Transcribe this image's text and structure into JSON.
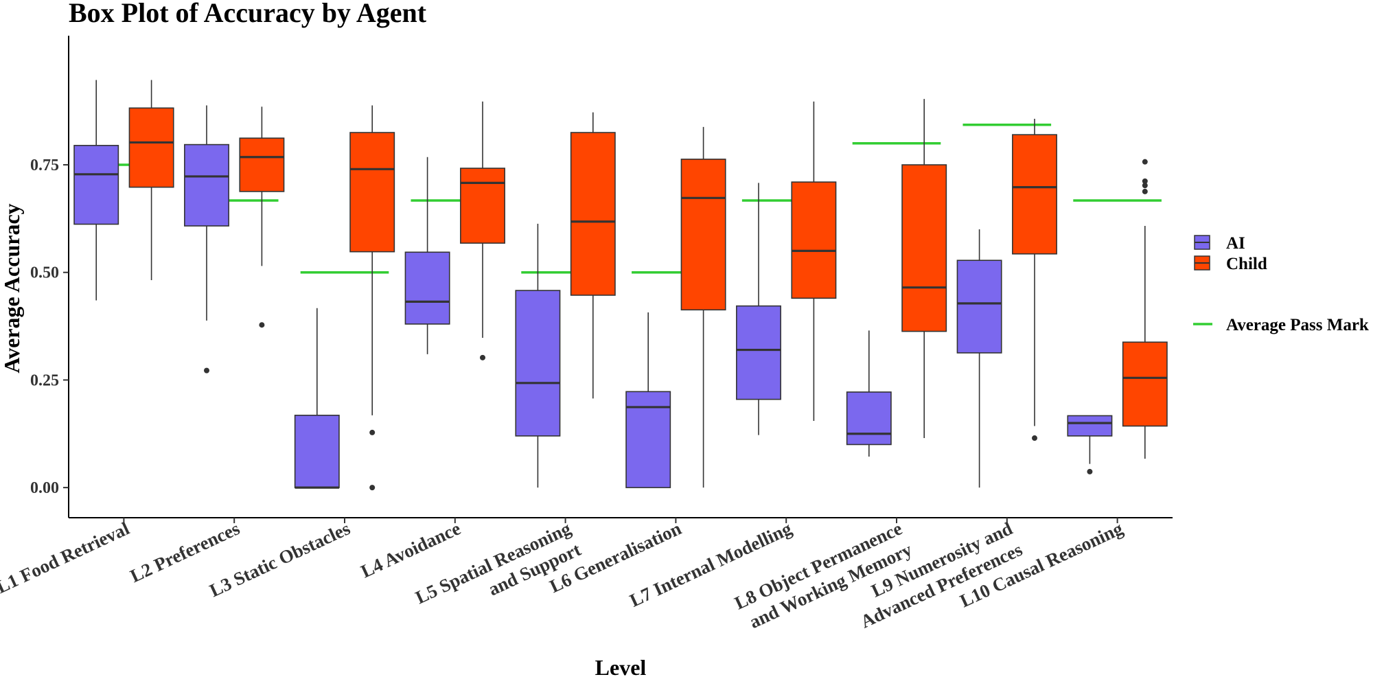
{
  "chart_data": {
    "type": "boxplot",
    "title": "Box Plot of Accuracy by Agent",
    "xlabel": "Level",
    "ylabel": "Average Accuracy",
    "ylim": [
      -0.07,
      1.05
    ],
    "yticks": [
      0.0,
      0.25,
      0.5,
      0.75
    ],
    "ytick_labels": [
      "0.00",
      "0.25",
      "0.50",
      "0.75"
    ],
    "legend": {
      "position": "right",
      "items": [
        {
          "name": "AI",
          "color": "#7B68EE"
        },
        {
          "name": "Child",
          "color": "#FF4500"
        }
      ],
      "pass_mark_label": "Average Pass Mark",
      "pass_mark_color": "#32CD32"
    },
    "categories": [
      {
        "lines": [
          "L1 Food Retrieval"
        ],
        "pass_mark": 0.75,
        "AI": {
          "whisker_low": 0.435,
          "q1": 0.612,
          "median": 0.728,
          "q3": 0.795,
          "whisker_high": 0.947,
          "outliers": []
        },
        "Child": {
          "whisker_low": 0.482,
          "q1": 0.698,
          "median": 0.802,
          "q3": 0.882,
          "whisker_high": 0.947,
          "outliers": []
        }
      },
      {
        "lines": [
          "L2 Preferences"
        ],
        "pass_mark": 0.667,
        "AI": {
          "whisker_low": 0.388,
          "q1": 0.608,
          "median": 0.723,
          "q3": 0.797,
          "whisker_high": 0.888,
          "outliers": [
            0.272
          ]
        },
        "Child": {
          "whisker_low": 0.515,
          "q1": 0.688,
          "median": 0.768,
          "q3": 0.812,
          "whisker_high": 0.885,
          "outliers": [
            0.378
          ]
        }
      },
      {
        "lines": [
          "L3 Static Obstacles"
        ],
        "pass_mark": 0.5,
        "AI": {
          "whisker_low": 0.0,
          "q1": 0.0,
          "median": 0.0,
          "q3": 0.168,
          "whisker_high": 0.417,
          "outliers": []
        },
        "Child": {
          "whisker_low": 0.168,
          "q1": 0.548,
          "median": 0.74,
          "q3": 0.825,
          "whisker_high": 0.888,
          "outliers": [
            0.128,
            0.0
          ]
        }
      },
      {
        "lines": [
          "L4 Avoidance"
        ],
        "pass_mark": 0.667,
        "AI": {
          "whisker_low": 0.31,
          "q1": 0.38,
          "median": 0.432,
          "q3": 0.547,
          "whisker_high": 0.768,
          "outliers": []
        },
        "Child": {
          "whisker_low": 0.348,
          "q1": 0.568,
          "median": 0.708,
          "q3": 0.742,
          "whisker_high": 0.897,
          "outliers": [
            0.302
          ]
        }
      },
      {
        "lines": [
          "L5 Spatial Reasoning",
          "and Support"
        ],
        "pass_mark": 0.5,
        "AI": {
          "whisker_low": 0.0,
          "q1": 0.12,
          "median": 0.243,
          "q3": 0.458,
          "whisker_high": 0.613,
          "outliers": []
        },
        "Child": {
          "whisker_low": 0.207,
          "q1": 0.447,
          "median": 0.618,
          "q3": 0.825,
          "whisker_high": 0.872,
          "outliers": []
        }
      },
      {
        "lines": [
          "L6 Generalisation"
        ],
        "pass_mark": 0.5,
        "AI": {
          "whisker_low": 0.0,
          "q1": 0.0,
          "median": 0.187,
          "q3": 0.223,
          "whisker_high": 0.407,
          "outliers": []
        },
        "Child": {
          "whisker_low": 0.0,
          "q1": 0.413,
          "median": 0.673,
          "q3": 0.763,
          "whisker_high": 0.838,
          "outliers": []
        }
      },
      {
        "lines": [
          "L7 Internal Modelling"
        ],
        "pass_mark": 0.667,
        "AI": {
          "whisker_low": 0.122,
          "q1": 0.205,
          "median": 0.32,
          "q3": 0.422,
          "whisker_high": 0.708,
          "outliers": []
        },
        "Child": {
          "whisker_low": 0.155,
          "q1": 0.44,
          "median": 0.55,
          "q3": 0.71,
          "whisker_high": 0.897,
          "outliers": []
        }
      },
      {
        "lines": [
          "L8 Object Permanence",
          "and Working Memory"
        ],
        "pass_mark": 0.8,
        "AI": {
          "whisker_low": 0.072,
          "q1": 0.1,
          "median": 0.125,
          "q3": 0.222,
          "whisker_high": 0.365,
          "outliers": []
        },
        "Child": {
          "whisker_low": 0.115,
          "q1": 0.363,
          "median": 0.465,
          "q3": 0.75,
          "whisker_high": 0.903,
          "outliers": []
        }
      },
      {
        "lines": [
          "L9 Numerosity and",
          "Advanced Preferences"
        ],
        "pass_mark": 0.843,
        "AI": {
          "whisker_low": 0.0,
          "q1": 0.313,
          "median": 0.428,
          "q3": 0.528,
          "whisker_high": 0.6,
          "outliers": []
        },
        "Child": {
          "whisker_low": 0.143,
          "q1": 0.543,
          "median": 0.698,
          "q3": 0.82,
          "whisker_high": 0.857,
          "outliers": [
            0.115
          ]
        }
      },
      {
        "lines": [
          "L10 Causal Reasoning"
        ],
        "pass_mark": 0.667,
        "AI": {
          "whisker_low": 0.055,
          "q1": 0.12,
          "median": 0.15,
          "q3": 0.167,
          "whisker_high": 0.167,
          "outliers": [
            0.037
          ]
        },
        "Child": {
          "whisker_low": 0.067,
          "q1": 0.143,
          "median": 0.255,
          "q3": 0.338,
          "whisker_high": 0.608,
          "outliers": [
            0.757,
            0.712,
            0.702,
            0.688
          ]
        }
      }
    ]
  }
}
